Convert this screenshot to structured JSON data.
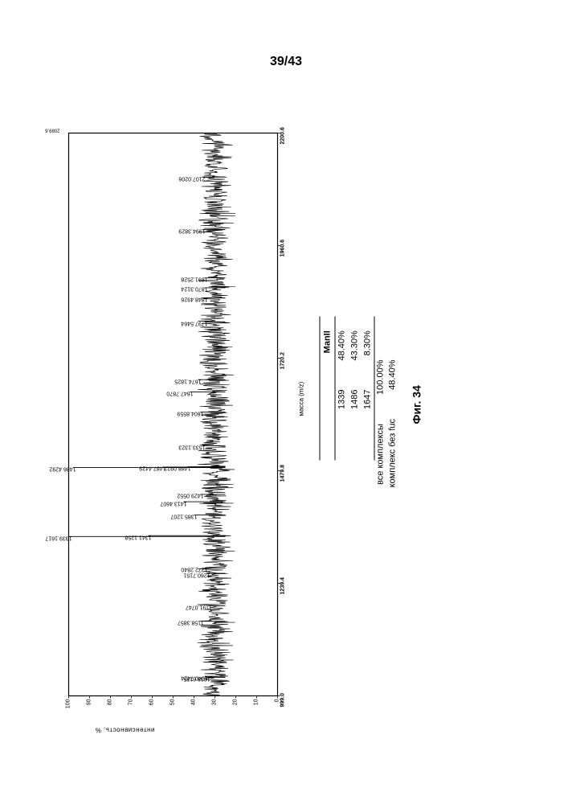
{
  "page_number": "39/43",
  "figure_caption": "Фиг. 34",
  "y_axis_label": "интенсивность, %",
  "x_axis_label": "масса (m/z)",
  "x_axis": {
    "min": 999.0,
    "max": 2200.6,
    "ticks": [
      "999.0",
      "1239.4",
      "1479.8",
      "1720.2",
      "1960.6",
      "2200.6"
    ]
  },
  "y_axis": {
    "min": 0,
    "max": 100,
    "ticks": [
      0,
      10,
      20,
      30,
      40,
      50,
      60,
      70,
      80,
      90,
      100
    ]
  },
  "major_peaks": [
    {
      "mz": 1339.16,
      "intensity": 100,
      "label": "1339.1617"
    },
    {
      "mz": 1486.42,
      "intensity": 98,
      "label": "1486.4292"
    },
    {
      "mz": 1341.12,
      "intensity": 62,
      "label": "1341.1258"
    },
    {
      "mz": 1487.44,
      "intensity": 55,
      "label": "1487.4429"
    },
    {
      "mz": 1413.46,
      "intensity": 45,
      "label": "1413.4607"
    },
    {
      "mz": 1488.09,
      "intensity": 43,
      "label": "1488.0922"
    },
    {
      "mz": 1647.78,
      "intensity": 42,
      "label": "1647.7870"
    },
    {
      "mz": 1385.12,
      "intensity": 40,
      "label": "1385.1207"
    },
    {
      "mz": 1674.18,
      "intensity": 38,
      "label": "1674.1825"
    },
    {
      "mz": 1429.05,
      "intensity": 37,
      "label": "1429.0552"
    },
    {
      "mz": 1158.38,
      "intensity": 37,
      "label": "1158.3857"
    },
    {
      "mz": 1604.85,
      "intensity": 37,
      "label": "1604.8559"
    },
    {
      "mz": 1533.13,
      "intensity": 36,
      "label": "1533.1323"
    },
    {
      "mz": 1994.38,
      "intensity": 36,
      "label": "1994.3829"
    },
    {
      "mz": 2107.02,
      "intensity": 36,
      "label": "2107.0206"
    },
    {
      "mz": 1848.49,
      "intensity": 35,
      "label": "1848.4926"
    },
    {
      "mz": 1797.54,
      "intensity": 35,
      "label": "1797.5464"
    },
    {
      "mz": 1870.31,
      "intensity": 35,
      "label": "1870.3124"
    },
    {
      "mz": 1891.25,
      "intensity": 35,
      "label": "1891.2528"
    },
    {
      "mz": 1272.28,
      "intensity": 35,
      "label": "1272.2840"
    },
    {
      "mz": 1040.74,
      "intensity": 35,
      "label": "1040.7424"
    },
    {
      "mz": 1260.71,
      "intensity": 34,
      "label": "1260.7151"
    },
    {
      "mz": 1038.61,
      "intensity": 34,
      "label": "1038.6135"
    },
    {
      "mz": 1191.07,
      "intensity": 33,
      "label": "1191.0747"
    }
  ],
  "noise_baseline": 30,
  "noise_amplitude": 5,
  "table": {
    "header_col2": "ManII",
    "rows": [
      {
        "mass": "1339",
        "pct": "48.40%"
      },
      {
        "mass": "1486",
        "pct": "43.30%"
      },
      {
        "mass": "1647",
        "pct": "8.30%"
      }
    ]
  },
  "summary": [
    {
      "label": "все комплексы",
      "value": "100.00%"
    },
    {
      "label": "комплекс без fuc",
      "value": "48.40%"
    }
  ],
  "y_max_label": "2089.6",
  "colors": {
    "ink": "#000000",
    "background": "#ffffff"
  }
}
